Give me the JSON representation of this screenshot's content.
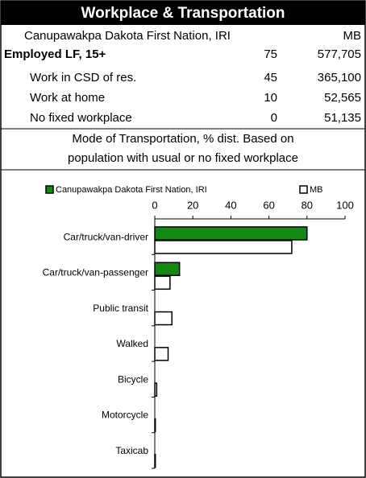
{
  "header": {
    "title": "Workplace & Transportation"
  },
  "table": {
    "columns": [
      "Canupawakpa Dakota First Nation, IRI",
      "MB"
    ],
    "rows": [
      [
        "Employed LF, 15+",
        "75",
        "577,705"
      ],
      [
        "Work in CSD of res.",
        "45",
        "365,100"
      ],
      [
        "Work at home",
        "10",
        "52,565"
      ],
      [
        "No fixed workplace",
        "0",
        "51,135"
      ]
    ]
  },
  "note": {
    "lines": [
      "Mode of Transportation, % dist. Based on",
      "population with usual or no fixed workplace"
    ]
  },
  "chart_data": {
    "type": "hbar",
    "categories": [
      "Car/truck/van-driver",
      "Car/truck/van-passenger",
      "Public transit",
      "Walked",
      "Bicycle",
      "Motorcycle",
      "Taxicab"
    ],
    "series": [
      {
        "name": "Canupawakpa Dakota First Nation, IRI",
        "color": "#108a10",
        "values": [
          80,
          13,
          0,
          0,
          0,
          0,
          0
        ]
      },
      {
        "name": "MB",
        "color": "#ffffff",
        "values": [
          72,
          8,
          9,
          7,
          1,
          0.3,
          0.3
        ]
      }
    ],
    "xlim": [
      0,
      100
    ],
    "xticks": [
      0,
      20,
      40,
      60,
      80,
      100
    ]
  }
}
